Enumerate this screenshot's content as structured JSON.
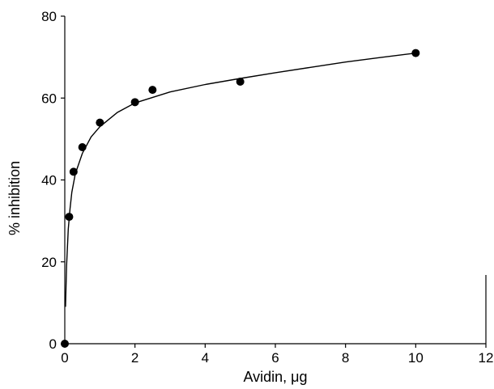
{
  "chart_data": {
    "type": "scatter",
    "title": "",
    "xlabel": "Avidin, μg",
    "ylabel": "% inhibition",
    "xlim": [
      0,
      12
    ],
    "ylim": [
      0,
      80
    ],
    "x_ticks": [
      "0",
      "2",
      "4",
      "6",
      "8",
      "10",
      "12"
    ],
    "y_ticks": [
      "0",
      "20",
      "40",
      "60",
      "80"
    ],
    "grid": false,
    "legend": "none",
    "series": [
      {
        "marker_color": "#000000",
        "points": [
          {
            "x": 0,
            "y": 0
          },
          {
            "x": 0.125,
            "y": 31
          },
          {
            "x": 0.25,
            "y": 42
          },
          {
            "x": 0.5,
            "y": 48
          },
          {
            "x": 1,
            "y": 54
          },
          {
            "x": 2,
            "y": 59
          },
          {
            "x": 2.5,
            "y": 62
          },
          {
            "x": 5,
            "y": 64
          },
          {
            "x": 10,
            "y": 71
          }
        ]
      }
    ],
    "fit_curve": {
      "color": "#000000",
      "points": [
        {
          "x": 0.02,
          "y": 9
        },
        {
          "x": 0.05,
          "y": 19
        },
        {
          "x": 0.1,
          "y": 28
        },
        {
          "x": 0.15,
          "y": 33
        },
        {
          "x": 0.2,
          "y": 37
        },
        {
          "x": 0.3,
          "y": 41.5
        },
        {
          "x": 0.5,
          "y": 46.5
        },
        {
          "x": 0.75,
          "y": 50.5
        },
        {
          "x": 1,
          "y": 53
        },
        {
          "x": 1.5,
          "y": 56.5
        },
        {
          "x": 2,
          "y": 58.8
        },
        {
          "x": 3,
          "y": 61.5
        },
        {
          "x": 4,
          "y": 63.3
        },
        {
          "x": 5,
          "y": 64.8
        },
        {
          "x": 6,
          "y": 66.2
        },
        {
          "x": 7,
          "y": 67.5
        },
        {
          "x": 8,
          "y": 68.8
        },
        {
          "x": 9,
          "y": 69.9
        },
        {
          "x": 10,
          "y": 71
        }
      ]
    }
  }
}
